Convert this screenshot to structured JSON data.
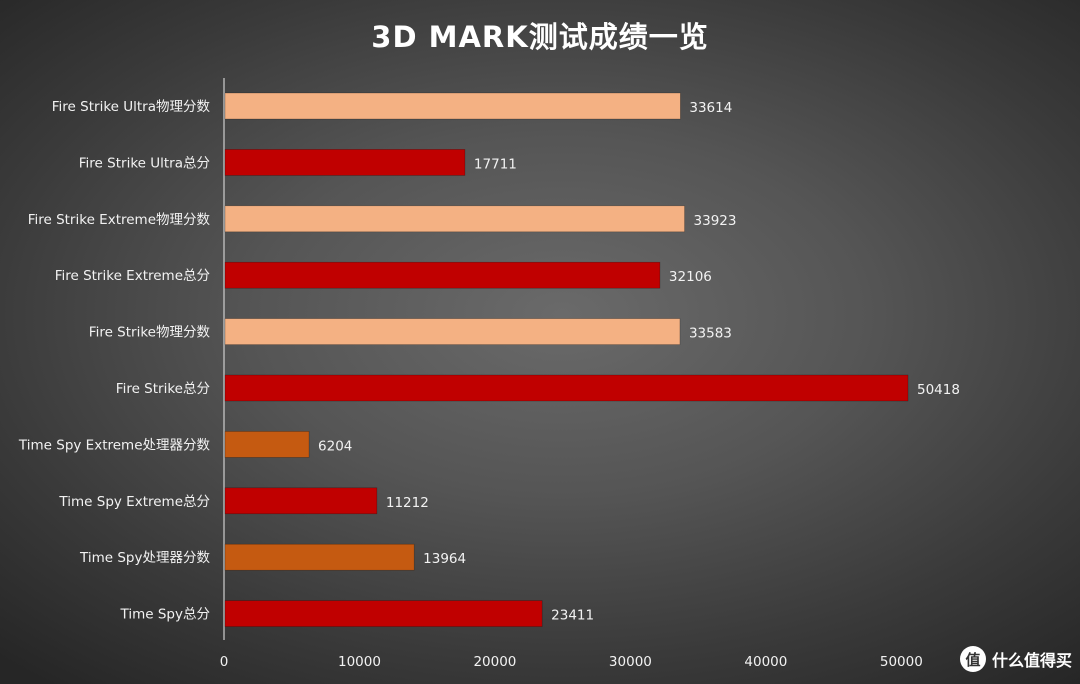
{
  "chart_data": {
    "type": "bar",
    "orientation": "horizontal",
    "title": "3D MARK测试成绩一览",
    "categories": [
      "Fire Strike  Ultra物理分数",
      "Fire Strike  Ultra总分",
      "Fire Strike Extreme物理分数",
      "Fire Strike Extreme总分",
      "Fire Strike物理分数",
      "Fire Strike总分",
      "Time Spy  Extreme处理器分数",
      "Time Spy  Extreme总分",
      "Time Spy处理器分数",
      "Time Spy总分"
    ],
    "values": [
      33614,
      17711,
      33923,
      32106,
      33583,
      50418,
      6204,
      11212,
      13964,
      23411
    ],
    "value_labels": [
      "33614",
      "17711",
      "33923",
      "32106",
      "33583",
      "50418",
      "6204",
      "11212",
      "13964",
      "23411"
    ],
    "bar_colors": [
      "#f4b183",
      "#c00000",
      "#f4b183",
      "#c00000",
      "#f4b183",
      "#c00000",
      "#c55a11",
      "#c00000",
      "#c55a11",
      "#c00000"
    ],
    "xlim": [
      0,
      50000
    ],
    "xticks": [
      0,
      10000,
      20000,
      30000,
      40000,
      50000
    ],
    "xtick_labels": [
      "0",
      "10000",
      "20000",
      "30000",
      "40000",
      "50000"
    ],
    "grid": false,
    "legend": "none",
    "xlabel": "",
    "ylabel": ""
  },
  "watermark": {
    "icon_char": "值",
    "text": "什么值得买"
  },
  "colors": {
    "background": "#4f4f4f",
    "text": "#f2f2f2",
    "axis": "#cfcfcf"
  }
}
